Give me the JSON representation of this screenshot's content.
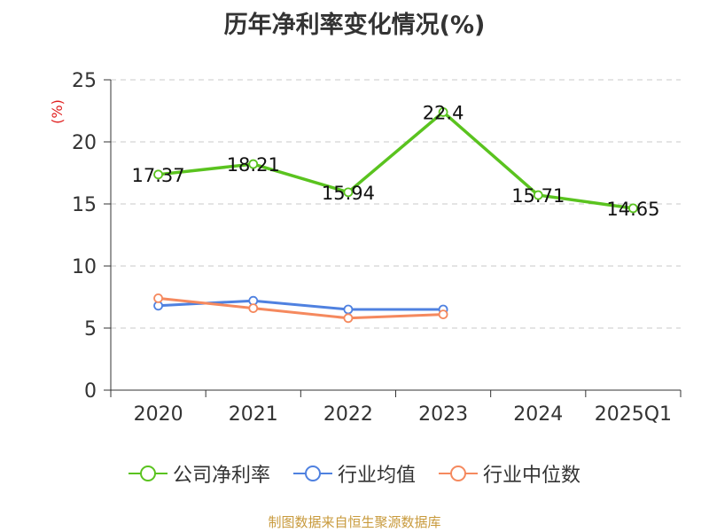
{
  "title": "历年净利率变化情况(%)",
  "source": "制图数据来自恒生聚源数据库",
  "chart_data": {
    "type": "line",
    "title": "历年净利率变化情况(%)",
    "ylabel": "(%)",
    "xlabel": "",
    "categories": [
      "2020",
      "2021",
      "2022",
      "2023",
      "2024",
      "2025Q1"
    ],
    "ylim": [
      0,
      25
    ],
    "yticks": [
      "0",
      "5",
      "10",
      "15",
      "20",
      "25"
    ],
    "grid": true,
    "legend_position": "bottom",
    "series": [
      {
        "name": "公司净利率",
        "color": "#5ac31f",
        "values": [
          17.37,
          18.21,
          15.94,
          22.4,
          15.71,
          14.65
        ],
        "labels": [
          "17.37",
          "18.21",
          "15.94",
          "22.4",
          "15.71",
          "14.65"
        ]
      },
      {
        "name": "行业均值",
        "color": "#4f81e0",
        "values": [
          6.8,
          7.2,
          6.5,
          6.5,
          null,
          null
        ]
      },
      {
        "name": "行业中位数",
        "color": "#f5895e",
        "values": [
          7.4,
          6.6,
          5.8,
          6.1,
          null,
          null
        ]
      }
    ]
  }
}
